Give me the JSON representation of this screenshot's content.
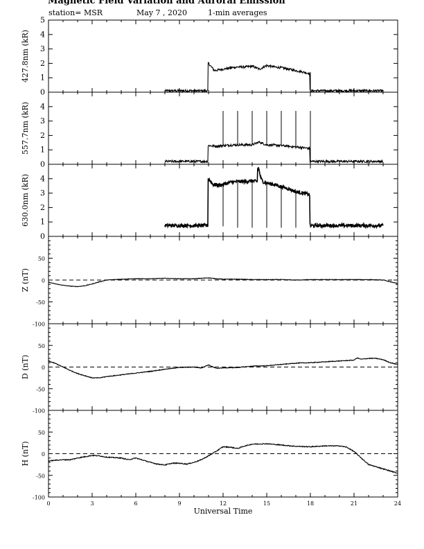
{
  "header": {
    "title": "Magnetic Field Variation and Auroral Emission",
    "station": "station= MSR",
    "date": "May 7  , 2020",
    "averaging": "1-min averages"
  },
  "chart_data": [
    {
      "type": "line",
      "ylabel": "427.8nm (kR)",
      "xlim": [
        0,
        24
      ],
      "ylim": [
        0,
        5
      ],
      "yticks": [
        0,
        1,
        2,
        3,
        4,
        5
      ],
      "series": [
        {
          "x": [
            8.0,
            8.5,
            9.0,
            9.5,
            10.0,
            10.5,
            10.95,
            11.0,
            11.4,
            12.0,
            12.6,
            13.0,
            13.5,
            14.0,
            14.5,
            15.0,
            15.5,
            16.0,
            16.5,
            17.0,
            17.5,
            17.95,
            18.0,
            19.0,
            20.0,
            21.0,
            22.0,
            23.0
          ],
          "y": [
            0.1,
            0.1,
            0.1,
            0.1,
            0.1,
            0.1,
            0.1,
            2.0,
            1.5,
            1.6,
            1.7,
            1.75,
            1.75,
            1.8,
            1.6,
            1.85,
            1.75,
            1.7,
            1.6,
            1.5,
            1.4,
            1.3,
            0.1,
            0.1,
            0.1,
            0.1,
            0.1,
            0.1
          ]
        }
      ],
      "spikes": [
        {
          "x": 12.0,
          "y": 1.6
        },
        {
          "x": 13.0,
          "y": 1.75
        },
        {
          "x": 14.0,
          "y": 1.8
        },
        {
          "x": 15.0,
          "y": 1.85
        },
        {
          "x": 16.0,
          "y": 1.7
        },
        {
          "x": 17.0,
          "y": 1.5
        },
        {
          "x": 18.0,
          "y": 1.4
        }
      ],
      "noise": 0.08
    },
    {
      "type": "line",
      "ylabel": "557.7nm (kR)",
      "xlim": [
        0,
        24
      ],
      "ylim": [
        0,
        5
      ],
      "yticks": [
        0,
        1,
        2,
        3,
        4
      ],
      "series": [
        {
          "x": [
            8.0,
            9.0,
            10.0,
            10.95,
            11.0,
            11.5,
            12.0,
            13.0,
            14.0,
            14.5,
            14.7,
            15.0,
            16.0,
            17.0,
            17.95,
            18.0,
            19.0,
            20.0,
            21.0,
            22.0,
            23.0
          ],
          "y": [
            0.2,
            0.2,
            0.2,
            0.2,
            1.3,
            1.25,
            1.3,
            1.35,
            1.35,
            1.55,
            1.45,
            1.35,
            1.3,
            1.2,
            1.1,
            0.2,
            0.2,
            0.2,
            0.2,
            0.2,
            0.2
          ]
        }
      ],
      "spikes": [
        {
          "x": 12.0,
          "y": 3.7
        },
        {
          "x": 13.0,
          "y": 3.7
        },
        {
          "x": 14.0,
          "y": 3.7
        },
        {
          "x": 15.0,
          "y": 3.7
        },
        {
          "x": 16.0,
          "y": 3.7
        },
        {
          "x": 17.0,
          "y": 3.7
        },
        {
          "x": 18.0,
          "y": 3.7
        }
      ],
      "noise": 0.08
    },
    {
      "type": "line",
      "ylabel": "630.0nm (kR)",
      "xlim": [
        0,
        24
      ],
      "ylim": [
        0,
        5
      ],
      "yticks": [
        0,
        1,
        2,
        3,
        4
      ],
      "series": [
        {
          "x": [
            8.0,
            9.0,
            10.0,
            10.95,
            11.0,
            11.3,
            11.8,
            12.5,
            13.0,
            13.5,
            14.0,
            14.3,
            14.45,
            14.6,
            14.8,
            15.0,
            15.5,
            16.0,
            16.5,
            17.0,
            17.5,
            17.95,
            18.0,
            19.0,
            20.0,
            21.0,
            22.0,
            23.0
          ],
          "y": [
            0.75,
            0.75,
            0.75,
            0.75,
            4.0,
            3.6,
            3.55,
            3.75,
            3.8,
            3.8,
            3.85,
            3.8,
            4.7,
            4.0,
            3.75,
            3.7,
            3.6,
            3.45,
            3.3,
            3.1,
            3.0,
            2.9,
            0.75,
            0.75,
            0.75,
            0.75,
            0.75,
            0.75
          ]
        }
      ],
      "spikes": [
        {
          "x": 12.0,
          "y": 0.7
        },
        {
          "x": 13.0,
          "y": 0.6
        },
        {
          "x": 14.0,
          "y": 0.6
        },
        {
          "x": 15.0,
          "y": 0.6
        },
        {
          "x": 16.0,
          "y": 0.6
        },
        {
          "x": 17.0,
          "y": 0.6
        },
        {
          "x": 18.0,
          "y": 0.6
        }
      ],
      "noise": 0.12
    },
    {
      "type": "line",
      "ylabel": "Z (nT)",
      "xlim": [
        0,
        24
      ],
      "ylim": [
        -100,
        100
      ],
      "yticks": [
        -100,
        -50,
        0,
        50
      ],
      "zero_line": "dashed",
      "series": [
        {
          "x": [
            0,
            0.5,
            1,
            1.5,
            2,
            2.5,
            3,
            3.5,
            4,
            5,
            6,
            7,
            8,
            9,
            10,
            11,
            11.5,
            12,
            13,
            14,
            15,
            16,
            17,
            18,
            19,
            20,
            21,
            22,
            23,
            23.5,
            24
          ],
          "y": [
            -5,
            -9,
            -12,
            -14,
            -15,
            -13,
            -9,
            -4,
            0,
            2,
            3,
            3,
            4,
            3,
            3,
            5,
            3,
            2,
            2,
            1,
            1,
            1,
            0,
            1,
            1,
            1,
            1,
            1,
            0,
            -4,
            -8
          ]
        }
      ],
      "noise": 0.6
    },
    {
      "type": "line",
      "ylabel": "D (nT)",
      "xlim": [
        0,
        24
      ],
      "ylim": [
        -100,
        100
      ],
      "yticks": [
        -100,
        -50,
        0,
        50
      ],
      "zero_line": "dashed",
      "series": [
        {
          "x": [
            0,
            0.5,
            1,
            1.5,
            2,
            2.5,
            3,
            3.5,
            4,
            5,
            6,
            7,
            8,
            9,
            10,
            10.5,
            11,
            11.5,
            12,
            13,
            14,
            15,
            16,
            17,
            18,
            19,
            20,
            21,
            21.2,
            21.5,
            22,
            22.5,
            23,
            23.5,
            24
          ],
          "y": [
            14,
            8,
            0,
            -8,
            -15,
            -20,
            -25,
            -25,
            -22,
            -18,
            -14,
            -10,
            -5,
            -1,
            0,
            -2,
            5,
            -3,
            -2,
            -1,
            2,
            3,
            6,
            9,
            10,
            12,
            14,
            16,
            21,
            18,
            20,
            20,
            17,
            10,
            6
          ]
        }
      ],
      "noise": 0.8
    },
    {
      "type": "line",
      "ylabel": "H (nT)",
      "xlim": [
        0,
        24
      ],
      "ylim": [
        -100,
        100
      ],
      "yticks": [
        -100,
        -50,
        0,
        50
      ],
      "zero_line": "dashed",
      "xticks": [
        0,
        3,
        6,
        9,
        12,
        15,
        18,
        21,
        24
      ],
      "xlabel": "Universal Time",
      "series": [
        {
          "x": [
            0,
            0.5,
            1,
            1.5,
            2,
            2.5,
            3,
            3.5,
            4,
            5,
            5.5,
            6,
            6.5,
            7,
            7.5,
            8,
            8.5,
            9,
            9.5,
            10,
            10.5,
            11,
            11.5,
            12,
            12.5,
            13,
            13.5,
            14,
            15,
            16,
            17,
            18,
            19,
            20,
            20.5,
            21,
            21.5,
            22,
            22.5,
            23,
            23.5,
            24
          ],
          "y": [
            -17,
            -15,
            -14,
            -14,
            -10,
            -7,
            -4,
            -5,
            -8,
            -10,
            -14,
            -10,
            -15,
            -20,
            -24,
            -26,
            -22,
            -22,
            -24,
            -20,
            -14,
            -5,
            5,
            16,
            15,
            12,
            18,
            22,
            23,
            20,
            17,
            16,
            18,
            18,
            15,
            5,
            -10,
            -25,
            -30,
            -35,
            -40,
            -45
          ]
        }
      ],
      "noise": 1.0
    }
  ]
}
